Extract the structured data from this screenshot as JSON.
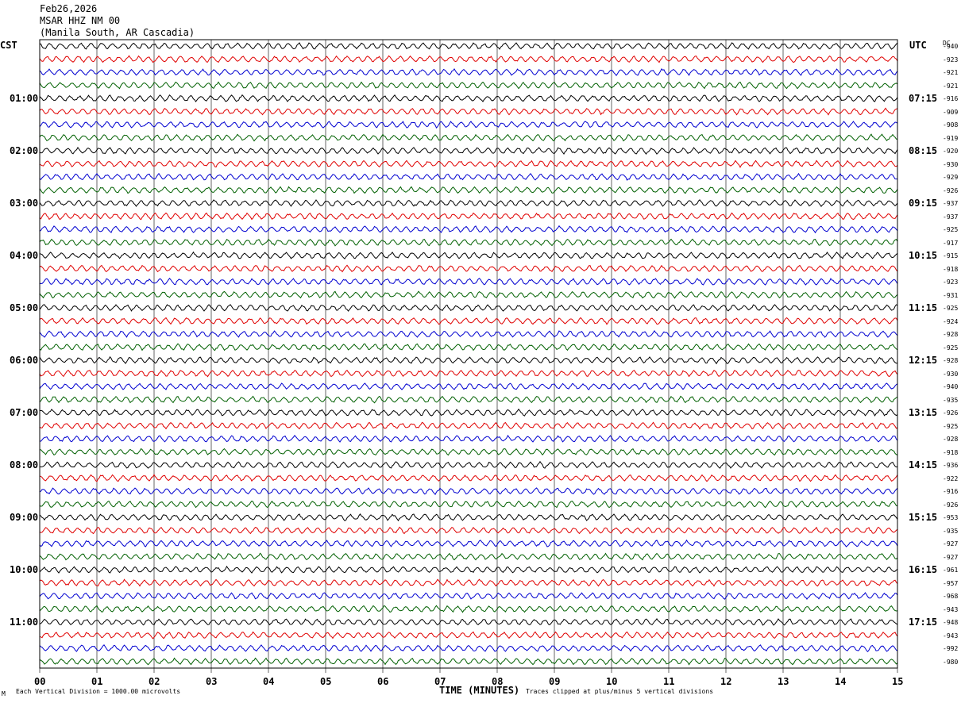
{
  "header": {
    "date": "Feb26,2026",
    "station": "MSAR HHZ NM 00",
    "location": "(Manila South, AR Cascadia)"
  },
  "left_zone": "CST",
  "right_zone": "UTC",
  "dc_header": "DC",
  "chart_data": {
    "type": "line",
    "xlabel": "TIME (MINUTES)",
    "xlim": [
      0,
      15
    ],
    "x_ticks": [
      "00",
      "01",
      "02",
      "03",
      "04",
      "05",
      "06",
      "07",
      "08",
      "09",
      "10",
      "11",
      "12",
      "13",
      "14",
      "15"
    ],
    "left_time_labels": [
      "01:00",
      "02:00",
      "03:00",
      "04:00",
      "05:00",
      "06:00",
      "07:00",
      "08:00",
      "09:00",
      "10:00",
      "11:00"
    ],
    "right_time_labels": [
      "07:15",
      "08:15",
      "09:15",
      "10:15",
      "11:15",
      "12:15",
      "13:15",
      "14:15",
      "15:15",
      "16:15",
      "17:15"
    ],
    "dc_offsets": [
      "-940",
      "-923",
      "-921",
      "-921",
      "-916",
      "-909",
      "-908",
      "-919",
      "-920",
      "-930",
      "-929",
      "-926",
      "-937",
      "-937",
      "-925",
      "-917",
      "-915",
      "-918",
      "-923",
      "-931",
      "-925",
      "-924",
      "-928",
      "-925",
      "-928",
      "-930",
      "-940",
      "-935",
      "-926",
      "-925",
      "-928",
      "-918",
      "-936",
      "-922",
      "-916",
      "-926",
      "-953",
      "-935",
      "-927",
      "-927",
      "-961",
      "-957",
      "-968",
      "-943",
      "-948",
      "-943",
      "-992",
      "-980"
    ],
    "trace_colors": [
      "#000000",
      "#e00000",
      "#0000d0",
      "#006000"
    ],
    "grid": true,
    "scale_note": "Each Vertical Division = 1000.00 microvolts",
    "clip_note": "Traces clipped at plus/minus 5 vertical divisions",
    "corner_mark": "M"
  }
}
